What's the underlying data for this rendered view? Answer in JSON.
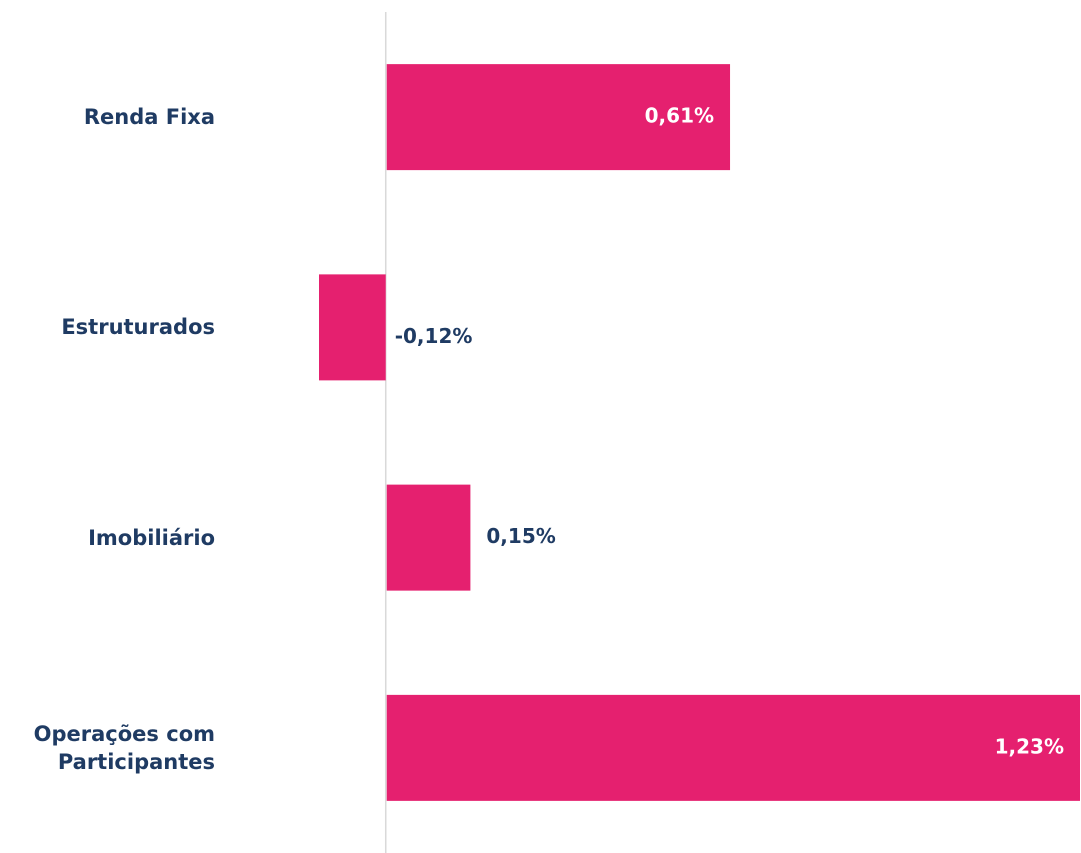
{
  "chart_data": {
    "type": "bar",
    "orientation": "horizontal",
    "categories": [
      "Renda Fixa",
      "Estruturados",
      "Imobiliário",
      "Operações com Participantes"
    ],
    "values": [
      0.61,
      -0.12,
      0.15,
      1.23
    ],
    "value_labels": [
      "0,61%",
      "-0,12%",
      "0,15%",
      "1,23%"
    ],
    "color": "#e5206f",
    "xlim": [
      -0.12,
      1.23
    ]
  }
}
